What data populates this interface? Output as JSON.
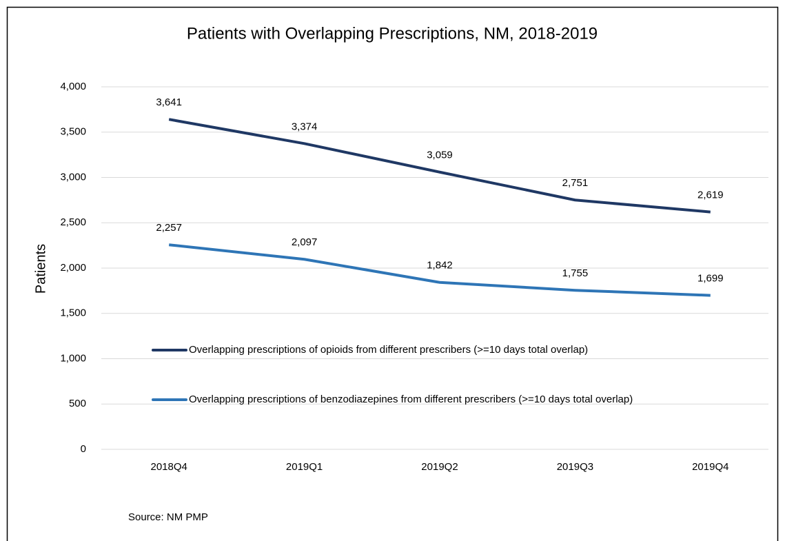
{
  "chart_data": {
    "type": "line",
    "title": "Patients with Overlapping Prescriptions, NM, 2018-2019",
    "y_label": "Patients",
    "source": "Source:  NM PMP",
    "categories": [
      "2018Q4",
      "2019Q1",
      "2019Q2",
      "2019Q3",
      "2019Q4"
    ],
    "series": [
      {
        "name": "Overlapping prescriptions of opioids from different prescribers (>=10 days total overlap)",
        "color": "#1f3864",
        "values": [
          3641,
          3374,
          3059,
          2751,
          2619
        ],
        "value_labels": [
          "3,641",
          "3,374",
          "3,059",
          "2,751",
          "2,619"
        ]
      },
      {
        "name": "Overlapping prescriptions of benzodiazepines from different prescribers (>=10 days total overlap)",
        "color": "#2e75b6",
        "values": [
          2257,
          2097,
          1842,
          1755,
          1699
        ],
        "value_labels": [
          "2,257",
          "2,097",
          "1,842",
          "1,755",
          "1,699"
        ]
      }
    ],
    "ylim": [
      0,
      4000
    ],
    "yticks": [
      0,
      500,
      {
        "value": 1000,
        "label": "1,000"
      },
      {
        "value": 1500,
        "label": "1,500"
      },
      {
        "value": 2000,
        "label": "2,000"
      },
      {
        "value": 2500,
        "label": "2,500"
      },
      {
        "value": 3000,
        "label": "3,000"
      },
      {
        "value": 3500,
        "label": "3,500"
      },
      {
        "value": 4000,
        "label": "4,000"
      }
    ],
    "grid": true
  }
}
